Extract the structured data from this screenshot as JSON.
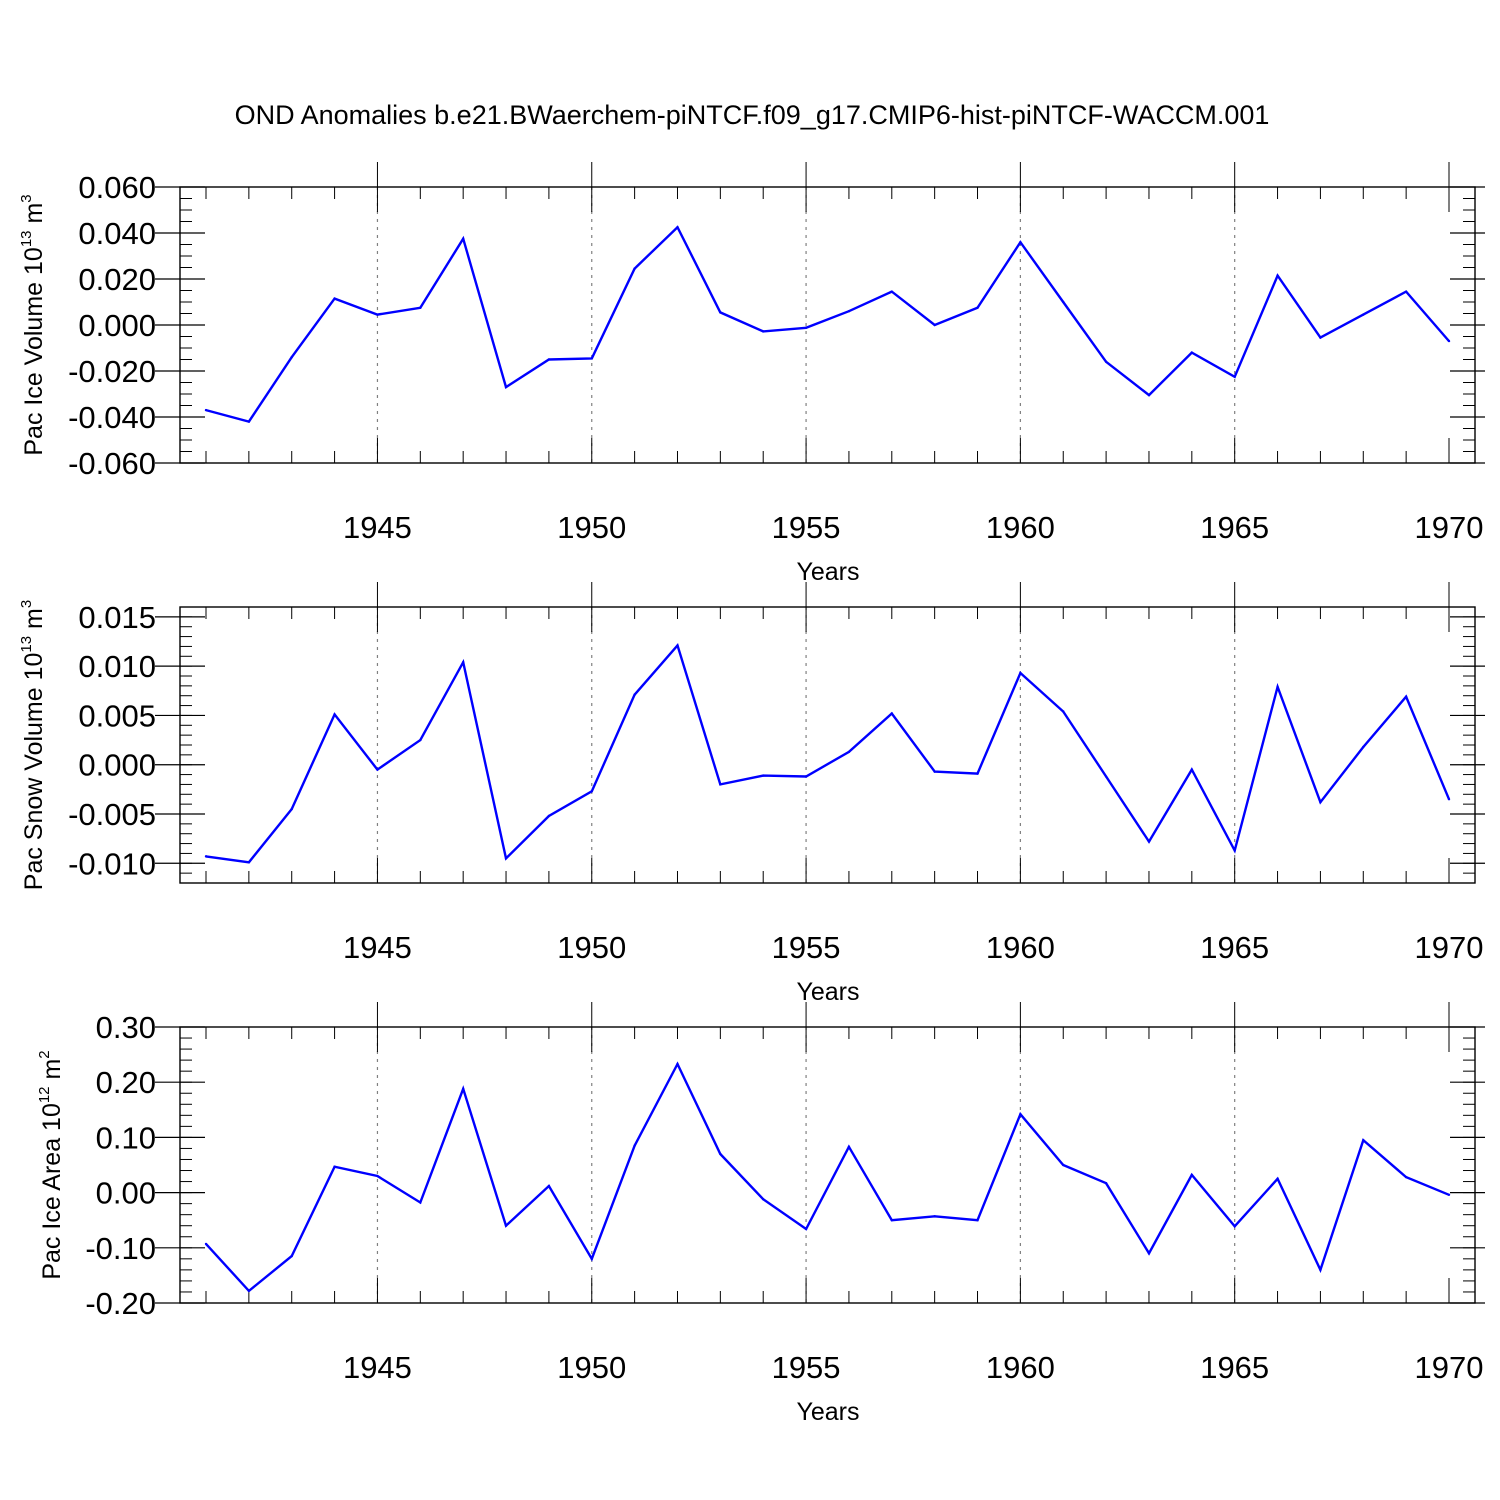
{
  "title": "OND Anomalies b.e21.BWaerchem-piNTCF.f09_g17.CMIP6-hist-piNTCF-WACCM.001",
  "colors": {
    "line": "#0000ff",
    "axis": "#000000",
    "grid": "#808080",
    "background": "#ffffff"
  },
  "chart_data": [
    {
      "type": "line",
      "ylabel": {
        "text": "Pac Ice Volume 10",
        "exponent": "13",
        "unit": " m",
        "unit_exponent": "3"
      },
      "xlabel": "Years",
      "xlim": [
        1941,
        1970
      ],
      "ylim": [
        -0.06,
        0.06
      ],
      "yticks": [
        -0.06,
        -0.04,
        -0.02,
        0.0,
        0.02,
        0.04,
        0.06
      ],
      "ytick_labels": [
        "-0.060",
        "-0.040",
        "-0.020",
        "0.000",
        "0.020",
        "0.040",
        "0.060"
      ],
      "ytick_minor_step": 0.005,
      "xticks": [
        1945,
        1950,
        1955,
        1960,
        1965,
        1970
      ],
      "xtick_labels": [
        "1945",
        "1950",
        "1955",
        "1960",
        "1965",
        "1970"
      ],
      "grid": "vertical dashed at labeled years",
      "x": [
        1941,
        1942,
        1943,
        1944,
        1945,
        1946,
        1947,
        1948,
        1949,
        1950,
        1951,
        1952,
        1953,
        1954,
        1955,
        1956,
        1957,
        1958,
        1959,
        1960,
        1961,
        1962,
        1963,
        1964,
        1965,
        1966,
        1967,
        1968,
        1969,
        1970
      ],
      "values": [
        -0.037,
        -0.042,
        -0.014,
        0.0115,
        0.0045,
        0.0075,
        0.0375,
        -0.027,
        -0.015,
        -0.0145,
        0.0245,
        0.0425,
        0.0055,
        -0.0028,
        -0.0012,
        0.006,
        0.0145,
        0.0,
        0.0075,
        0.036,
        0.01,
        -0.016,
        -0.0305,
        -0.012,
        -0.0225,
        0.0215,
        -0.0055,
        0.0045,
        0.0145,
        -0.007
      ]
    },
    {
      "type": "line",
      "ylabel": {
        "text": "Pac Snow Volume 10",
        "exponent": "13",
        "unit": " m",
        "unit_exponent": "3"
      },
      "xlabel": "Years",
      "xlim": [
        1941,
        1970
      ],
      "ylim": [
        -0.012,
        0.016
      ],
      "yticks": [
        -0.01,
        -0.005,
        0.0,
        0.005,
        0.01,
        0.015
      ],
      "ytick_labels": [
        "-0.010",
        "-0.005",
        "0.000",
        "0.005",
        "0.010",
        "0.015"
      ],
      "ytick_minor_step": 0.001,
      "xticks": [
        1945,
        1950,
        1955,
        1960,
        1965,
        1970
      ],
      "xtick_labels": [
        "1945",
        "1950",
        "1955",
        "1960",
        "1965",
        "1970"
      ],
      "grid": "vertical dashed at labeled years",
      "x": [
        1941,
        1942,
        1943,
        1944,
        1945,
        1946,
        1947,
        1948,
        1949,
        1950,
        1951,
        1952,
        1953,
        1954,
        1955,
        1956,
        1957,
        1958,
        1959,
        1960,
        1961,
        1962,
        1963,
        1964,
        1965,
        1966,
        1967,
        1968,
        1969,
        1970
      ],
      "values": [
        -0.0093,
        -0.0099,
        -0.0045,
        0.0051,
        -0.0005,
        0.0025,
        0.0104,
        -0.0095,
        -0.0052,
        -0.0027,
        0.0071,
        0.0121,
        -0.002,
        -0.0011,
        -0.0012,
        0.0013,
        0.0052,
        -0.0007,
        -0.0009,
        0.0093,
        0.0054,
        -0.0012,
        -0.0078,
        -0.0005,
        -0.0087,
        0.0079,
        -0.0038,
        0.0018,
        0.0069,
        -0.0035
      ]
    },
    {
      "type": "line",
      "ylabel": {
        "text": "Pac Ice Area 10",
        "exponent": "12",
        "unit": " m",
        "unit_exponent": "2"
      },
      "xlabel": "Years",
      "xlim": [
        1941,
        1970
      ],
      "ylim": [
        -0.2,
        0.3
      ],
      "yticks": [
        -0.2,
        -0.1,
        0.0,
        0.1,
        0.2,
        0.3
      ],
      "ytick_labels": [
        "-0.20",
        "-0.10",
        "0.00",
        "0.10",
        "0.20",
        "0.30"
      ],
      "ytick_minor_step": 0.02,
      "xticks": [
        1945,
        1950,
        1955,
        1960,
        1965,
        1970
      ],
      "xtick_labels": [
        "1945",
        "1950",
        "1955",
        "1960",
        "1965",
        "1970"
      ],
      "grid": "vertical dashed at labeled years",
      "x": [
        1941,
        1942,
        1943,
        1944,
        1945,
        1946,
        1947,
        1948,
        1949,
        1950,
        1951,
        1952,
        1953,
        1954,
        1955,
        1956,
        1957,
        1958,
        1959,
        1960,
        1961,
        1962,
        1963,
        1964,
        1965,
        1966,
        1967,
        1968,
        1969,
        1970
      ],
      "values": [
        -0.093,
        -0.178,
        -0.115,
        0.047,
        0.03,
        -0.018,
        0.188,
        -0.06,
        0.012,
        -0.12,
        0.085,
        0.233,
        0.07,
        -0.012,
        -0.066,
        0.083,
        -0.05,
        -0.043,
        -0.05,
        0.142,
        0.05,
        0.017,
        -0.11,
        0.032,
        -0.061,
        0.025,
        -0.14,
        0.095,
        0.028,
        -0.004
      ]
    }
  ]
}
